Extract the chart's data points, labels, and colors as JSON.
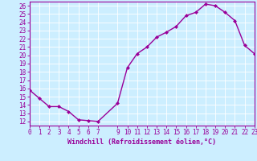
{
  "hours": [
    0,
    1,
    2,
    3,
    4,
    5,
    6,
    7,
    9,
    10,
    11,
    12,
    13,
    14,
    15,
    16,
    17,
    18,
    19,
    20,
    21,
    22,
    23
  ],
  "temps": [
    15.8,
    14.8,
    13.8,
    13.8,
    13.2,
    12.2,
    12.1,
    12.0,
    14.2,
    18.5,
    20.2,
    21.0,
    22.2,
    22.8,
    23.5,
    24.8,
    25.2,
    26.2,
    26.0,
    25.2,
    24.2,
    21.2,
    20.2
  ],
  "xlim": [
    0,
    23
  ],
  "ylim": [
    11.5,
    26.5
  ],
  "yticks": [
    12,
    13,
    14,
    15,
    16,
    17,
    18,
    19,
    20,
    21,
    22,
    23,
    24,
    25,
    26
  ],
  "xticks": [
    0,
    1,
    2,
    3,
    4,
    5,
    6,
    7,
    9,
    10,
    11,
    12,
    13,
    14,
    15,
    16,
    17,
    18,
    19,
    20,
    21,
    22,
    23
  ],
  "xlabel": "Windchill (Refroidissement éolien,°C)",
  "line_color": "#990099",
  "marker": "D",
  "marker_size": 2.0,
  "bg_color": "#cceeff",
  "grid_color": "#ffffff",
  "axes_color": "#990099",
  "tick_color": "#990099",
  "line_width": 1.0,
  "tick_fontsize": 5.5,
  "xlabel_fontsize": 6.0
}
